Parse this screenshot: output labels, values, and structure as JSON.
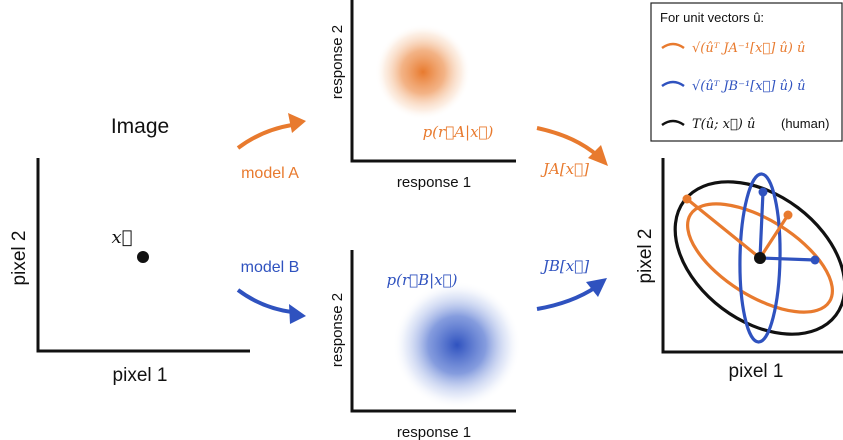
{
  "colors": {
    "model_a": "#e87a2e",
    "model_b": "#2f52bf",
    "human": "#111111",
    "axes": "#111111"
  },
  "image_panel": {
    "title": "Image",
    "xlabel": "pixel 1",
    "ylabel": "pixel 2",
    "point_label": "x⃗"
  },
  "model_a": {
    "arrow_label": "model A",
    "response_xlabel": "response 1",
    "response_ylabel": "response 2",
    "distribution_label": "p(r⃗A|x⃗)",
    "jacobian_label": "JA[x⃗]"
  },
  "model_b": {
    "arrow_label": "model B",
    "response_xlabel": "response 1",
    "response_ylabel": "response 2",
    "distribution_label": "p(r⃗B|x⃗)",
    "jacobian_label": "JB[x⃗]"
  },
  "result_panel": {
    "xlabel": "pixel 1",
    "ylabel": "pixel 2"
  },
  "legend": {
    "title": "For unit vectors û:",
    "entry_a": "√(ûᵀ JA⁻¹[x⃗] û) û",
    "entry_b": "√(ûᵀ JB⁻¹[x⃗] û) û",
    "entry_human": "T(û; x⃗) û",
    "entry_human_suffix": "(human)"
  }
}
